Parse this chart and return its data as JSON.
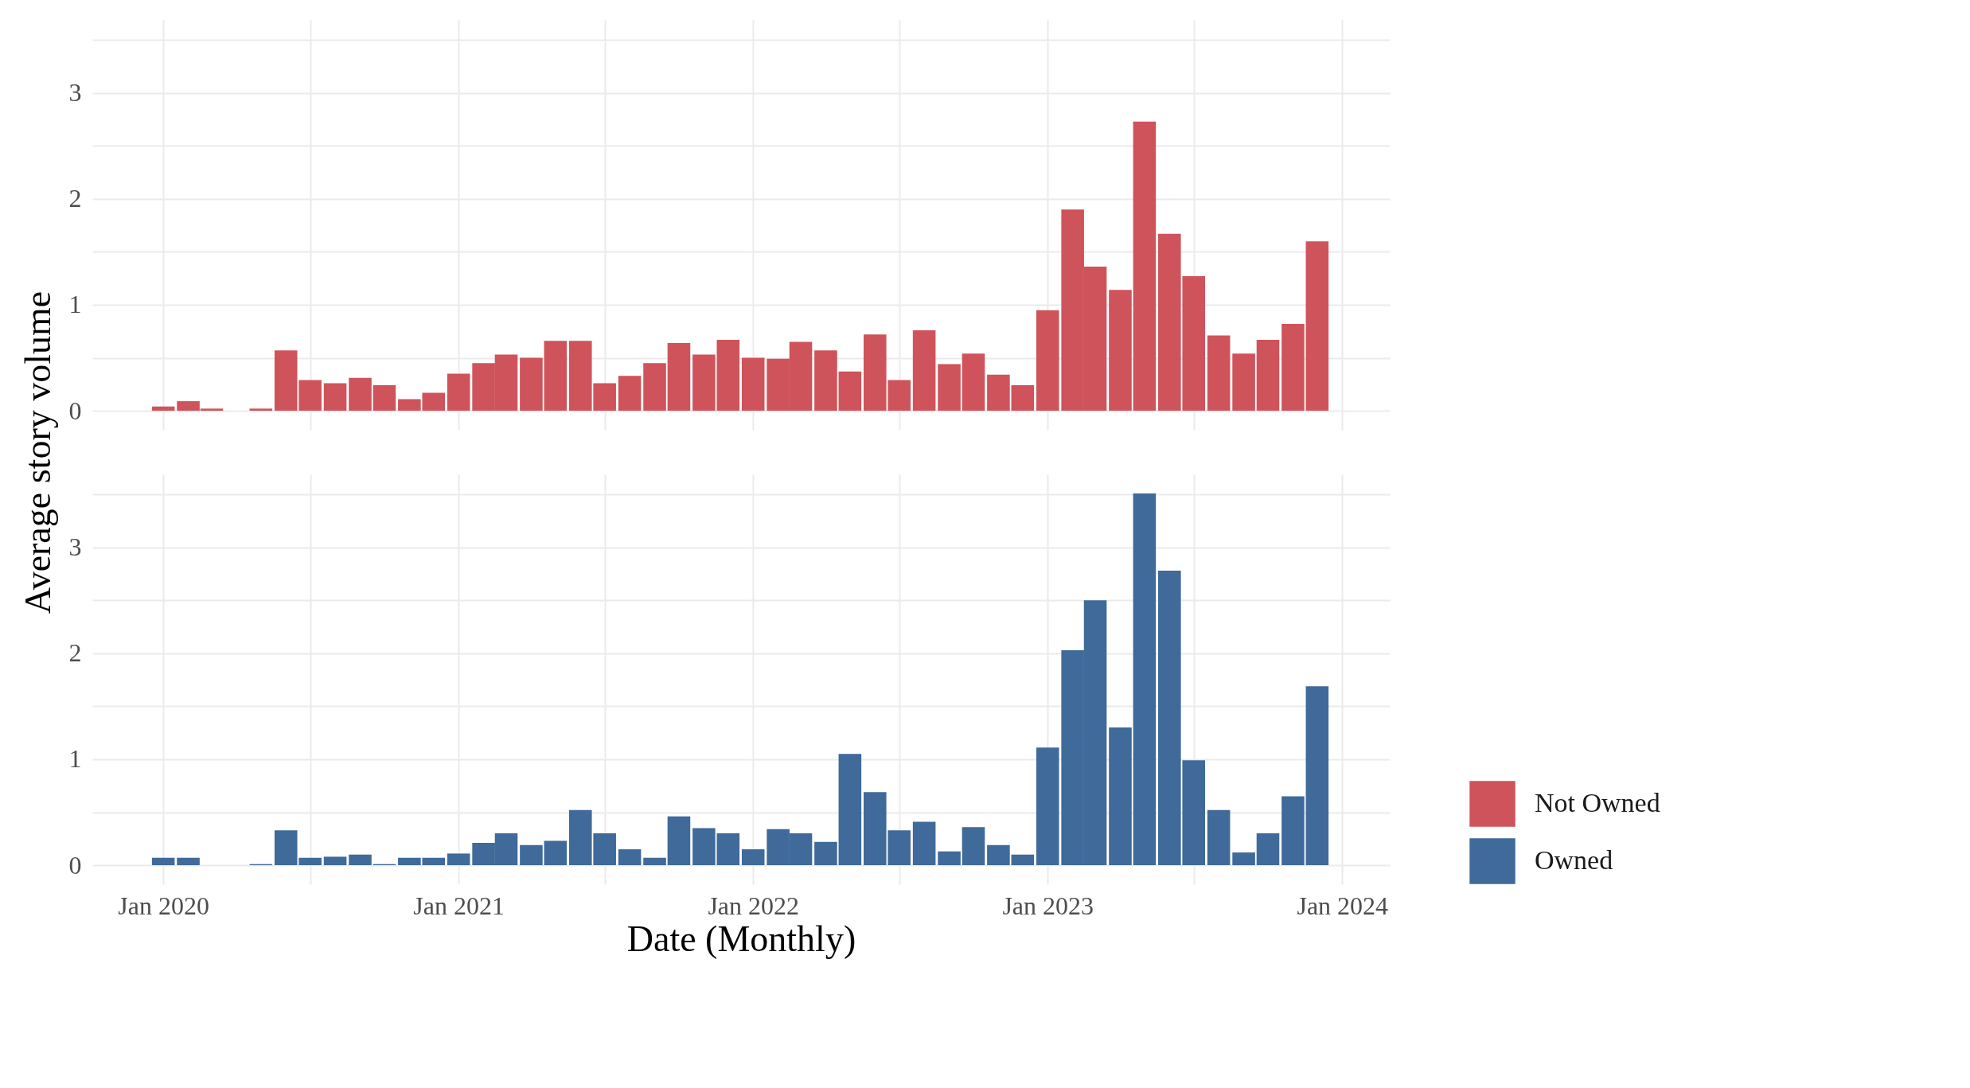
{
  "chart_data": [
    {
      "type": "bar",
      "ylabel": "Average story volume",
      "legend": "right",
      "tick_labels": "y",
      "grid": true,
      "x": [
        "2020-01",
        "2020-02",
        "2020-03",
        "2020-04",
        "2020-05",
        "2020-06",
        "2020-07",
        "2020-08",
        "2020-09",
        "2020-10",
        "2020-11",
        "2020-12",
        "2021-01",
        "2021-02",
        "2021-03",
        "2021-04",
        "2021-05",
        "2021-06",
        "2021-07",
        "2021-08",
        "2021-09",
        "2021-10",
        "2021-11",
        "2021-12",
        "2022-01",
        "2022-02",
        "2022-03",
        "2022-04",
        "2022-05",
        "2022-06",
        "2022-07",
        "2022-08",
        "2022-09",
        "2022-10",
        "2022-11",
        "2022-12",
        "2023-01",
        "2023-02",
        "2023-03",
        "2023-04",
        "2023-05",
        "2023-06",
        "2023-07",
        "2023-08",
        "2023-09",
        "2023-10",
        "2023-11",
        "2023-12"
      ],
      "series": [
        {
          "name": "Not Owned",
          "color": "#cf535b",
          "values": [
            0.04,
            0.09,
            0.02,
            0,
            0.02,
            0.57,
            0.29,
            0.26,
            0.31,
            0.24,
            0.11,
            0.17,
            0.35,
            0.45,
            0.53,
            0.5,
            0.66,
            0.66,
            0.26,
            0.33,
            0.45,
            0.64,
            0.53,
            0.67,
            0.5,
            0.49,
            0.65,
            0.57,
            0.37,
            0.72,
            0.29,
            0.76,
            0.44,
            0.54,
            0.34,
            0.24,
            0.95,
            1.9,
            1.36,
            1.14,
            2.73,
            1.67,
            1.27,
            0.71,
            0.54,
            0.67,
            0.82,
            1.6
          ]
        }
      ],
      "xlim": [
        "2019-10-10",
        "2024-02-24"
      ],
      "xticks": [
        {
          "value": "2020-01",
          "label": null
        },
        {
          "value": "2020-07",
          "label": null
        },
        {
          "value": "2021-01",
          "label": null
        },
        {
          "value": "2021-07",
          "label": null
        },
        {
          "value": "2022-01",
          "label": null
        },
        {
          "value": "2022-07",
          "label": null
        },
        {
          "value": "2023-01",
          "label": null
        },
        {
          "value": "2023-07",
          "label": null
        },
        {
          "value": "2024-01",
          "label": null
        }
      ],
      "ylim": [
        -0.18,
        3.69
      ],
      "yticks": [
        0,
        {
          "value": 0.5,
          "label": null
        },
        1,
        {
          "value": 1.5,
          "label": null
        },
        2,
        {
          "value": 2.5,
          "label": null
        },
        3,
        {
          "value": 3.5,
          "label": null
        }
      ]
    },
    {
      "type": "bar",
      "xlabel": "Date (Monthly)",
      "legend": "right",
      "grid": true,
      "x": [
        "2020-01",
        "2020-02",
        "2020-03",
        "2020-04",
        "2020-05",
        "2020-06",
        "2020-07",
        "2020-08",
        "2020-09",
        "2020-10",
        "2020-11",
        "2020-12",
        "2021-01",
        "2021-02",
        "2021-03",
        "2021-04",
        "2021-05",
        "2021-06",
        "2021-07",
        "2021-08",
        "2021-09",
        "2021-10",
        "2021-11",
        "2021-12",
        "2022-01",
        "2022-02",
        "2022-03",
        "2022-04",
        "2022-05",
        "2022-06",
        "2022-07",
        "2022-08",
        "2022-09",
        "2022-10",
        "2022-11",
        "2022-12",
        "2023-01",
        "2023-02",
        "2023-03",
        "2023-04",
        "2023-05",
        "2023-06",
        "2023-07",
        "2023-08",
        "2023-09",
        "2023-10",
        "2023-11",
        "2023-12"
      ],
      "series": [
        {
          "name": "Owned",
          "color": "#3f6a99",
          "values": [
            0.07,
            0.07,
            0,
            0,
            0.01,
            0.33,
            0.07,
            0.08,
            0.1,
            0.01,
            0.07,
            0.07,
            0.11,
            0.21,
            0.3,
            0.19,
            0.23,
            0.52,
            0.3,
            0.15,
            0.07,
            0.46,
            0.35,
            0.3,
            0.15,
            0.34,
            0.3,
            0.22,
            1.05,
            0.69,
            0.33,
            0.41,
            0.13,
            0.36,
            0.19,
            0.1,
            1.11,
            2.03,
            2.5,
            1.3,
            3.51,
            2.78,
            0.99,
            0.52,
            0.12,
            0.3,
            0.65,
            1.69
          ]
        }
      ],
      "xlim": [
        "2019-10-10",
        "2024-02-24"
      ],
      "xticks": [
        {
          "value": "2020-01",
          "label": "Jan 2020"
        },
        {
          "value": "2020-07",
          "label": null
        },
        {
          "value": "2021-01",
          "label": "Jan 2021"
        },
        {
          "value": "2021-07",
          "label": null
        },
        {
          "value": "2022-01",
          "label": "Jan 2022"
        },
        {
          "value": "2022-07",
          "label": null
        },
        {
          "value": "2023-01",
          "label": "Jan 2023"
        },
        {
          "value": "2023-07",
          "label": null
        },
        {
          "value": "2024-01",
          "label": "Jan 2024"
        }
      ],
      "ylim": [
        -0.18,
        3.69
      ],
      "yticks": [
        0,
        {
          "value": 0.5,
          "label": null
        },
        1,
        {
          "value": 1.5,
          "label": null
        },
        2,
        {
          "value": 2.5,
          "label": null
        },
        3,
        {
          "value": 3.5,
          "label": null
        }
      ]
    }
  ]
}
